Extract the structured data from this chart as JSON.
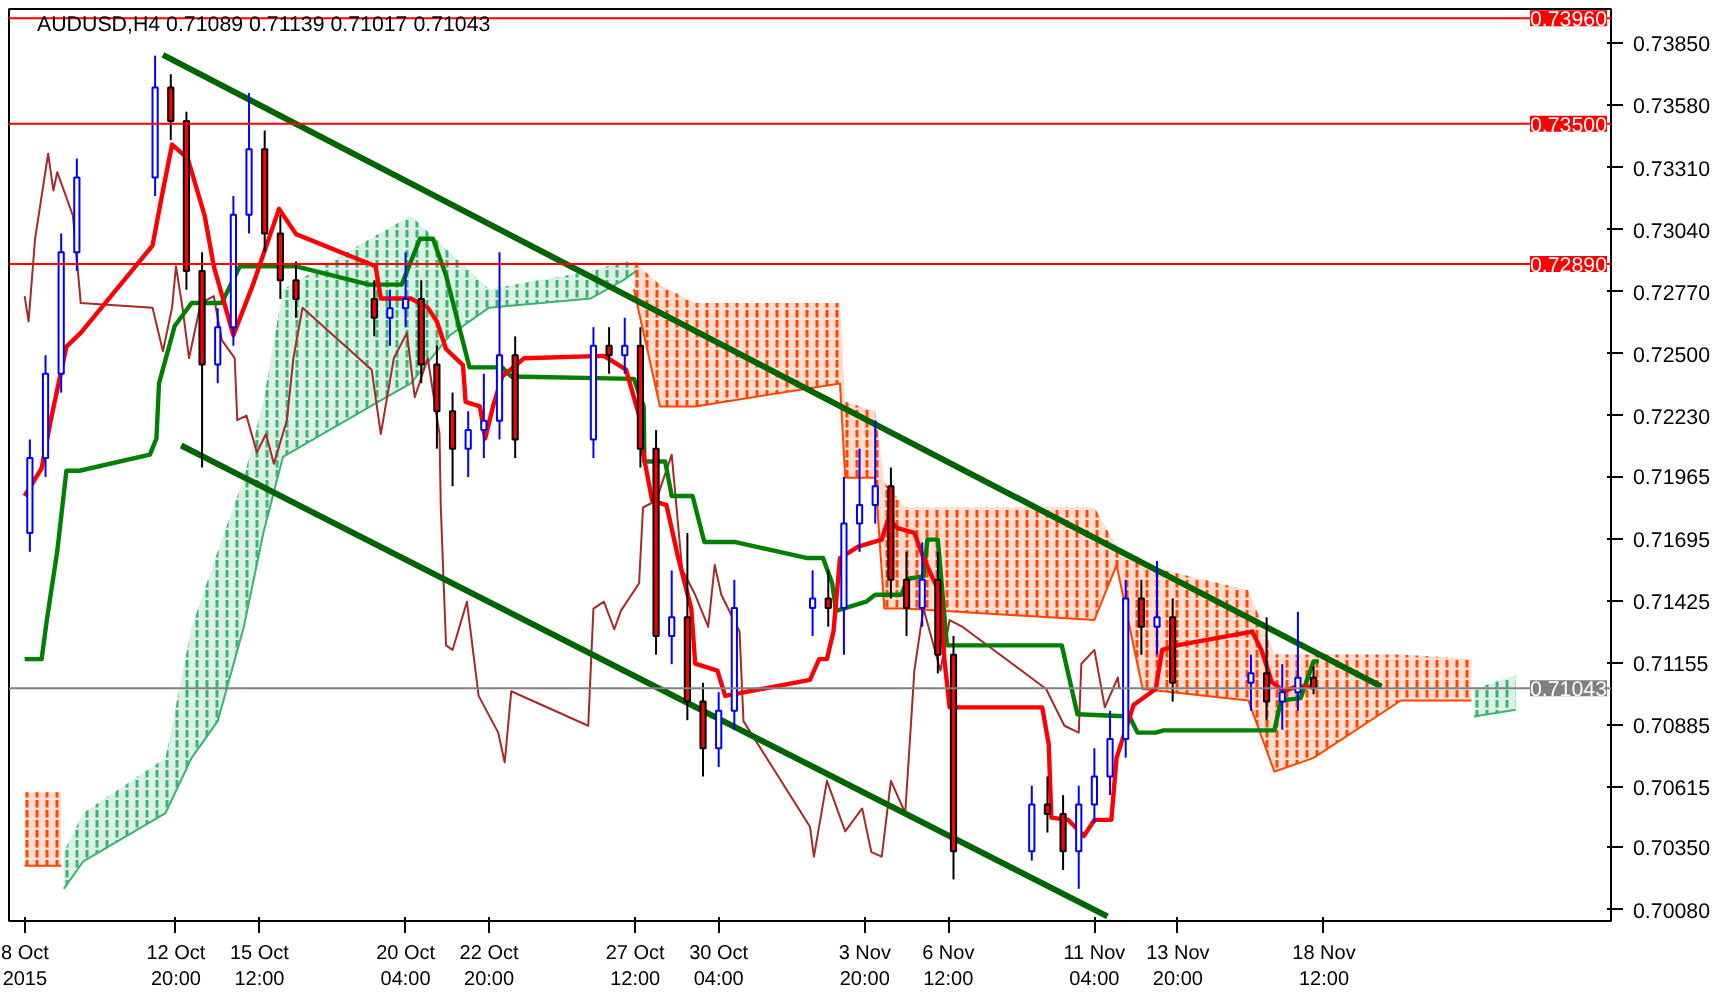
{
  "chart_data": {
    "type": "candlestick",
    "title": "AUDUSD,H4  0.71089 0.71139 0.71017 0.71043",
    "x": [
      "2015-10-08T04:00",
      "2015-10-08T16:00",
      "2015-10-09T04:00",
      "2015-10-09T16:00",
      "2015-10-12T04:00",
      "2015-10-12T16:00",
      "2015-10-13T04:00",
      "2015-10-13T16:00",
      "2015-10-14T04:00",
      "2015-10-14T16:00",
      "2015-10-15T04:00",
      "2015-10-15T16:00",
      "2015-10-16T04:00",
      "2015-10-16T16:00",
      "2015-10-19T04:00",
      "2015-10-19T16:00",
      "2015-10-20T04:00",
      "2015-10-20T16:00",
      "2015-10-21T04:00",
      "2015-10-21T16:00",
      "2015-10-22T04:00",
      "2015-10-22T16:00",
      "2015-10-23T04:00",
      "2015-10-23T16:00",
      "2015-10-26T04:00",
      "2015-10-26T16:00",
      "2015-10-27T04:00",
      "2015-10-27T16:00",
      "2015-10-28T04:00",
      "2015-10-28T16:00",
      "2015-10-29T04:00",
      "2015-10-29T16:00",
      "2015-10-30T04:00",
      "2015-10-30T16:00",
      "2015-11-02T04:00",
      "2015-11-02T16:00",
      "2015-11-03T04:00",
      "2015-11-03T16:00",
      "2015-11-04T04:00",
      "2015-11-04T16:00",
      "2015-11-05T04:00",
      "2015-11-05T16:00",
      "2015-11-06T04:00",
      "2015-11-06T16:00",
      "2015-11-09T04:00",
      "2015-11-09T16:00",
      "2015-11-10T04:00",
      "2015-11-10T16:00",
      "2015-11-11T04:00",
      "2015-11-11T16:00",
      "2015-11-12T04:00",
      "2015-11-12T16:00",
      "2015-11-13T04:00",
      "2015-11-13T16:00",
      "2015-11-16T04:00",
      "2015-11-16T16:00",
      "2015-11-17T04:00",
      "2015-11-17T16:00",
      "2015-11-18T04:00"
    ],
    "ohlc": [
      [
        0.71719,
        0.72126,
        0.71637,
        0.72045
      ],
      [
        0.72045,
        0.72493,
        0.71963,
        0.72412
      ],
      [
        0.72412,
        0.73023,
        0.7233,
        0.72941
      ],
      [
        0.72941,
        0.73349,
        0.7286,
        0.73267
      ],
      [
        0.73267,
        0.73797,
        0.73186,
        0.73658
      ],
      [
        0.73658,
        0.73716,
        0.7343,
        0.73512
      ],
      [
        0.73512,
        0.73553,
        0.72778,
        0.7286
      ],
      [
        0.7286,
        0.72941,
        0.72004,
        0.72452
      ],
      [
        0.72452,
        0.72697,
        0.72371,
        0.72615
      ],
      [
        0.72615,
        0.73186,
        0.72534,
        0.73104
      ],
      [
        0.73104,
        0.73634,
        0.73023,
        0.7339
      ],
      [
        0.7339,
        0.73471,
        0.72941,
        0.73023
      ],
      [
        0.73023,
        0.73104,
        0.72738,
        0.72819
      ],
      [
        0.72819,
        0.72901,
        0.72656,
        0.72738
      ],
      [
        0.72738,
        0.72819,
        0.72575,
        0.72656
      ],
      [
        0.72656,
        0.72778,
        0.72534,
        0.72697
      ],
      [
        0.72697,
        0.72941,
        0.72615,
        0.72738
      ],
      [
        0.72738,
        0.72819,
        0.72371,
        0.72452
      ],
      [
        0.72452,
        0.72534,
        0.72086,
        0.72249
      ],
      [
        0.72249,
        0.7233,
        0.71923,
        0.72086
      ],
      [
        0.72086,
        0.72249,
        0.71963,
        0.72167
      ],
      [
        0.72167,
        0.72412,
        0.72045,
        0.72208
      ],
      [
        0.72208,
        0.72941,
        0.72126,
        0.72493
      ],
      [
        0.72493,
        0.72575,
        0.72045,
        0.72126
      ],
      [
        0.72126,
        0.72615,
        0.72045,
        0.72534
      ],
      [
        0.72534,
        0.72615,
        0.72412,
        0.72493
      ],
      [
        0.72493,
        0.72656,
        0.72412,
        0.72534
      ],
      [
        0.72534,
        0.72615,
        0.72004,
        0.72086
      ],
      [
        0.72086,
        0.72167,
        0.71189,
        0.71271
      ],
      [
        0.71271,
        0.71556,
        0.71148,
        0.71352
      ],
      [
        0.71352,
        0.71719,
        0.70904,
        0.70985
      ],
      [
        0.70985,
        0.71067,
        0.70659,
        0.70782
      ],
      [
        0.70782,
        0.71026,
        0.707,
        0.70945
      ],
      [
        0.70945,
        0.71515,
        0.70863,
        0.71393
      ],
      [
        0.71393,
        0.71556,
        0.71271,
        0.71434
      ],
      [
        0.71434,
        0.71556,
        0.71311,
        0.71393
      ],
      [
        0.71393,
        0.71963,
        0.71189,
        0.7176
      ],
      [
        0.7176,
        0.72086,
        0.71637,
        0.71841
      ],
      [
        0.71841,
        0.72208,
        0.7176,
        0.71923
      ],
      [
        0.71923,
        0.72004,
        0.71434,
        0.71515
      ],
      [
        0.71515,
        0.71637,
        0.71271,
        0.71393
      ],
      [
        0.71393,
        0.71678,
        0.71311,
        0.71515
      ],
      [
        0.71515,
        0.71637,
        0.71108,
        0.71189
      ],
      [
        0.71189,
        0.71271,
        0.70211,
        0.70334
      ],
      [
        0.70334,
        0.70619,
        0.70293,
        0.70537
      ],
      [
        0.70537,
        0.70659,
        0.70415,
        0.70496
      ],
      [
        0.70496,
        0.70578,
        0.70252,
        0.70334
      ],
      [
        0.70334,
        0.70619,
        0.7017,
        0.70537
      ],
      [
        0.70537,
        0.70782,
        0.70456,
        0.70659
      ],
      [
        0.70659,
        0.70945,
        0.70578,
        0.70822
      ],
      [
        0.70822,
        0.71515,
        0.70741,
        0.71434
      ],
      [
        0.71434,
        0.71515,
        0.71189,
        0.71311
      ],
      [
        0.71311,
        0.71597,
        0.71189,
        0.71352
      ],
      [
        0.71352,
        0.71434,
        0.70985,
        0.71067
      ],
      [
        0.71067,
        0.71189,
        0.70945,
        0.71108
      ],
      [
        0.71108,
        0.71352,
        0.70904,
        0.70985
      ],
      [
        0.70985,
        0.71148,
        0.70863,
        0.71026
      ],
      [
        0.71026,
        0.71376,
        0.70945,
        0.71089
      ],
      [
        0.71089,
        0.71139,
        0.71017,
        0.71043
      ]
    ],
    "colors": [
      "#0000ff",
      "#0000ff",
      "#0000ff",
      "#0000ff",
      "#0000ff",
      "#ff0000",
      "#ff0000",
      "#ff0000",
      "#0000ff",
      "#0000ff",
      "#0000ff",
      "#ff0000",
      "#ff0000",
      "#ff0000",
      "#ff0000",
      "#0000ff",
      "#0000ff",
      "#ff0000",
      "#ff0000",
      "#ff0000",
      "#0000ff",
      "#0000ff",
      "#0000ff",
      "#ff0000",
      "#0000ff",
      "#ff0000",
      "#0000ff",
      "#ff0000",
      "#ff0000",
      "#0000ff",
      "#ff0000",
      "#ff0000",
      "#0000ff",
      "#0000ff",
      "#0000ff",
      "#ff0000",
      "#0000ff",
      "#0000ff",
      "#0000ff",
      "#ff0000",
      "#ff0000",
      "#0000ff",
      "#ff0000",
      "#ff0000",
      "#0000ff",
      "#ff0000",
      "#ff0000",
      "#0000ff",
      "#0000ff",
      "#0000ff",
      "#0000ff",
      "#ff0000",
      "#0000ff",
      "#ff0000",
      "#0000ff",
      "#ff0000",
      "#0000ff",
      "#0000ff",
      "#ff0000"
    ],
    "xlim": [
      "2015-10-07T12:00",
      "2015-11-27T16:00"
    ],
    "xticks": [
      {
        "value": "2015-10-08T00:00",
        "label": "8 Oct 2015"
      },
      {
        "value": "2015-10-12T20:00",
        "label": "12 Oct 20:00"
      },
      {
        "value": "2015-10-15T12:00",
        "label": "15 Oct 12:00"
      },
      {
        "value": "2015-10-20T04:00",
        "label": "20 Oct 04:00"
      },
      {
        "value": "2015-10-22T20:00",
        "label": "22 Oct 20:00"
      },
      {
        "value": "2015-10-27T12:00",
        "label": "27 Oct 12:00"
      },
      {
        "value": "2015-10-30T04:00",
        "label": "30 Oct 04:00"
      },
      {
        "value": "2015-11-03T20:00",
        "label": "3 Nov 20:00"
      },
      {
        "value": "2015-11-06T12:00",
        "label": "6 Nov 12:00"
      },
      {
        "value": "2015-11-11T04:00",
        "label": "11 Nov 04:00"
      },
      {
        "value": "2015-11-13T20:00",
        "label": "13 Nov 20:00"
      },
      {
        "value": "2015-11-18T12:00",
        "label": "18 Nov 12:00"
      }
    ],
    "ylim": [
      0.7003,
      0.74
    ],
    "yticks": [
      {
        "value": 0.7385,
        "label": "0.73850"
      },
      {
        "value": 0.7358,
        "label": "0.73580"
      },
      {
        "value": 0.7331,
        "label": "0.73310"
      },
      {
        "value": 0.7304,
        "label": "0.73040"
      },
      {
        "value": 0.7277,
        "label": "0.72770"
      },
      {
        "value": 0.725,
        "label": "0.72500"
      },
      {
        "value": 0.7223,
        "label": "0.72230"
      },
      {
        "value": 0.71965,
        "label": "0.71965"
      },
      {
        "value": 0.71695,
        "label": "0.71695"
      },
      {
        "value": 0.71425,
        "label": "0.71425"
      },
      {
        "value": 0.71155,
        "label": "0.71155"
      },
      {
        "value": 0.70885,
        "label": "0.70885"
      },
      {
        "value": 0.70615,
        "label": "0.70615"
      },
      {
        "value": 0.7035,
        "label": "0.70350"
      },
      {
        "value": 0.7008,
        "label": "0.70080"
      }
    ],
    "ref_lines": [
      {
        "axis": "y",
        "value": 0.7396,
        "label": "0.73960",
        "color": "#ff0000"
      },
      {
        "axis": "y",
        "value": 0.735,
        "label": "0.73500",
        "color": "#ff0000"
      },
      {
        "axis": "y",
        "value": 0.7289,
        "label": "0.72890",
        "color": "#ff0000"
      },
      {
        "axis": "y",
        "value": 0.71043,
        "label": "0.71043",
        "color": "#808080"
      }
    ],
    "series": [
      {
        "type": "line",
        "color": "#ff4500",
        "x": [
          "2015-10-08T00:00",
          "2015-10-09T04:00"
        ],
        "values": [
          0.7027,
          0.7027
        ],
        "lower": [
          0.7027,
          0.7027
        ],
        "upper": [
          0.7059,
          0.7059
        ]
      },
      {
        "type": "line",
        "color": "#3cb371",
        "x": [
          "2015-10-09T06:00",
          "2015-10-09T21:00",
          "2015-10-12T12:00",
          "2015-10-13T08:00",
          "2015-10-14T04:00",
          "2015-10-15T00:00",
          "2015-10-15T15:00",
          "2015-10-16T06:00",
          "2015-10-19T07:00",
          "2015-10-20T08:00",
          "2015-10-21T14:00",
          "2015-10-22T20:00",
          "2015-10-26T02:00",
          "2015-10-27T03:00",
          "2015-10-27T13:00"
        ],
        "upper": [
          0.7033,
          0.705,
          0.7074,
          0.7131,
          0.7164,
          0.7196,
          0.7229,
          0.7278,
          0.7302,
          0.731,
          0.7294,
          0.7278,
          0.7286,
          0.729,
          0.729
        ],
        "values": [
          0.7017,
          0.7029,
          0.705,
          0.7074,
          0.709,
          0.7131,
          0.7172,
          0.7205,
          0.7229,
          0.7237,
          0.7258,
          0.727,
          0.7274,
          0.7282,
          0.7286
        ],
        "lower": [
          0.7017,
          0.7029,
          0.705,
          0.7074,
          0.709,
          0.7131,
          0.7172,
          0.7205,
          0.7229,
          0.7237,
          0.7258,
          0.727,
          0.7274,
          0.7282,
          0.7286
        ]
      },
      {
        "type": "line",
        "color": "#ff4500",
        "x": [
          "2015-10-27T11:00",
          "2015-10-28T07:00",
          "2015-10-29T10:00",
          "2015-11-03T01:00",
          "2015-11-03T05:00",
          "2015-11-04T04:00",
          "2015-11-04T11:00",
          "2015-11-05T03:00",
          "2015-11-11T04:00",
          "2015-11-11T21:00",
          "2015-11-12T17:00",
          "2015-11-16T02:00",
          "2015-11-16T22:00",
          "2015-11-18T04:00",
          "2015-11-20T23:00",
          "2015-11-23T05:00"
        ],
        "upper": [
          0.729,
          0.728,
          0.7272,
          0.7272,
          0.7229,
          0.7225,
          0.7194,
          0.7183,
          0.7183,
          0.7166,
          0.7158,
          0.7147,
          0.7119,
          0.7119,
          0.7119,
          0.7117
        ],
        "values": [
          0.7278,
          0.7227,
          0.7227,
          0.7237,
          0.7196,
          0.7196,
          0.7139,
          0.7139,
          0.7134,
          0.7158,
          0.7104,
          0.7099,
          0.7068,
          0.7074,
          0.7099,
          0.7099
        ],
        "lower": [
          0.7278,
          0.7227,
          0.7227,
          0.7237,
          0.7196,
          0.7196,
          0.7139,
          0.7139,
          0.7134,
          0.7158,
          0.7104,
          0.7099,
          0.7068,
          0.7074,
          0.7099,
          0.7099
        ]
      },
      {
        "type": "line",
        "color": "#3cb371",
        "x": [
          "2015-11-23T07:00",
          "2015-11-24T15:00"
        ],
        "values": [
          0.7092,
          0.7095
        ],
        "lower": [
          0.7092,
          0.7095
        ],
        "upper": [
          0.7104,
          0.711
        ]
      },
      {
        "type": "line",
        "color": "#a52a2a",
        "x": [
          "2015-10-08T00:00",
          "2015-10-08T03:00",
          "2015-10-08T08:00",
          "2015-10-08T18:00",
          "2015-10-08T22:00",
          "2015-10-09T01:00",
          "2015-10-09T13:00",
          "2015-10-09T19:00",
          "2015-10-12T02:00",
          "2015-10-12T10:00",
          "2015-10-12T17:00",
          "2015-10-12T20:00",
          "2015-10-13T01:00",
          "2015-10-13T06:00",
          "2015-10-13T15:00",
          "2015-10-14T01:00",
          "2015-10-14T07:00",
          "2015-10-14T17:00",
          "2015-10-14T19:00",
          "2015-10-15T02:00",
          "2015-10-15T10:00",
          "2015-10-15T17:00",
          "2015-10-15T23:00",
          "2015-10-16T09:00",
          "2015-10-16T14:00",
          "2015-10-16T21:00",
          "2015-10-19T02:00",
          "2015-10-19T09:00",
          "2015-10-19T19:00",
          "2015-10-20T05:00",
          "2015-10-20T11:00",
          "2015-10-20T21:00",
          "2015-10-21T06:00",
          "2015-10-21T07:00",
          "2015-10-21T11:00",
          "2015-10-21T16:00",
          "2015-10-22T03:00",
          "2015-10-22T12:00",
          "2015-10-23T03:00",
          "2015-10-23T08:00",
          "2015-10-23T13:00",
          "2015-10-26T00:00",
          "2015-10-26T04:00",
          "2015-10-26T12:00",
          "2015-10-26T20:00",
          "2015-10-27T01:00",
          "2015-10-27T15:00",
          "2015-10-27T18:00",
          "2015-10-28T04:00",
          "2015-10-28T16:00",
          "2015-10-29T00:00",
          "2015-10-29T10:00",
          "2015-10-29T20:00",
          "2015-10-30T01:00",
          "2015-10-30T06:00",
          "2015-10-30T20:00",
          "2015-10-30T23:00",
          "2015-11-02T02:00",
          "2015-11-02T05:00",
          "2015-11-02T15:00",
          "2015-11-03T05:00",
          "2015-11-03T18:00",
          "2015-11-04T01:00",
          "2015-11-04T09:00",
          "2015-11-04T16:00",
          "2015-11-05T03:00",
          "2015-11-05T10:00",
          "2015-11-05T17:00",
          "2015-11-06T06:00",
          "2015-11-06T13:00",
          "2015-11-06T23:00",
          "2015-11-09T15:00",
          "2015-11-10T05:00",
          "2015-11-10T16:00",
          "2015-11-10T18:00",
          "2015-11-11T04:00",
          "2015-11-11T12:00",
          "2015-11-11T22:00",
          "2015-11-11T23:00"
        ],
        "values": [
          0.7275,
          0.7264,
          0.73,
          0.7337,
          0.7321,
          0.7329,
          0.731,
          0.7272,
          0.727,
          0.7251,
          0.727,
          0.7288,
          0.727,
          0.7248,
          0.7272,
          0.7275,
          0.7256,
          0.7248,
          0.7221,
          0.7223,
          0.7207,
          0.7215,
          0.7202,
          0.7221,
          0.7248,
          0.727,
          0.7243,
          0.7215,
          0.7248,
          0.7259,
          0.7231,
          0.7248,
          0.7215,
          0.7183,
          0.7123,
          0.7121,
          0.7142,
          0.7101,
          0.7085,
          0.7072,
          0.7103,
          0.7088,
          0.7139,
          0.7142,
          0.713,
          0.7138,
          0.715,
          0.7183,
          0.7186,
          0.7206,
          0.7156,
          0.7145,
          0.7131,
          0.7158,
          0.7145,
          0.7129,
          0.709,
          0.7044,
          0.7031,
          0.7064,
          0.7042,
          0.7052,
          0.7033,
          0.7031,
          0.7064,
          0.705,
          0.7112,
          0.7139,
          0.7112,
          0.7134,
          0.7131,
          0.7104,
          0.7088,
          0.7085,
          0.7115,
          0.7121,
          0.7096,
          0.7109,
          0.7104
        ]
      },
      {
        "type": "line",
        "color": "#008000",
        "x": [
          "2015-10-08T00:00",
          "2015-10-08T13:00",
          "2015-10-08T17:00",
          "2015-10-09T01:00",
          "2015-10-09T08:00",
          "2015-10-09T18:00",
          "2015-10-12T00:00",
          "2015-10-12T05:00",
          "2015-10-12T07:00",
          "2015-10-12T19:00",
          "2015-10-13T08:00",
          "2015-10-14T07:00",
          "2015-10-14T21:00",
          "2015-10-16T16:00",
          "2015-10-19T00:00",
          "2015-10-20T01:00",
          "2015-10-20T15:00",
          "2015-10-21T01:00",
          "2015-10-21T11:00",
          "2015-10-22T05:00",
          "2015-10-23T06:00",
          "2015-10-23T13:00",
          "2015-10-27T11:00",
          "2015-10-27T18:30",
          "2015-10-27T19:00",
          "2015-10-28T11:00",
          "2015-10-28T16:00",
          "2015-10-29T08:00",
          "2015-10-29T17:00",
          "2015-10-30T16:00",
          "2015-11-02T00:00",
          "2015-11-02T12:00",
          "2015-11-02T19:00",
          "2015-11-02T22:00",
          "2015-11-03T21:00",
          "2015-11-04T04:00",
          "2015-11-05T00:00",
          "2015-11-05T05:00",
          "2015-11-05T17:00",
          "2015-11-05T20:00",
          "2015-11-06T04:00",
          "2015-11-06T11:00",
          "2015-11-10T03:00",
          "2015-11-10T15:00",
          "2015-11-12T07:00",
          "2015-11-12T13:00",
          "2015-11-13T03:00",
          "2015-11-13T09:00",
          "2015-11-16T22:00",
          "2015-11-17T03:00",
          "2015-11-17T18:00",
          "2015-11-18T04:00",
          "2015-11-18T08:00"
        ],
        "values": [
          0.7117,
          0.7117,
          0.7134,
          0.7164,
          0.7199,
          0.7199,
          0.7206,
          0.7213,
          0.7237,
          0.7262,
          0.7272,
          0.7272,
          0.7288,
          0.7288,
          0.728,
          0.728,
          0.73,
          0.73,
          0.7284,
          0.7244,
          0.7244,
          0.724,
          0.7239,
          0.7227,
          0.7203,
          0.7203,
          0.7188,
          0.7188,
          0.7168,
          0.7168,
          0.7161,
          0.7161,
          0.715,
          0.7138,
          0.7142,
          0.7145,
          0.7145,
          0.7152,
          0.7153,
          0.7169,
          0.7169,
          0.7123,
          0.7123,
          0.7093,
          0.7092,
          0.7085,
          0.7085,
          0.7086,
          0.7086,
          0.7099,
          0.71,
          0.7116,
          0.7116
        ]
      },
      {
        "type": "line",
        "color": "#ff0000",
        "x": [
          "2015-10-08T00:00",
          "2015-10-08T13:00",
          "2015-10-08T20:00",
          "2015-10-09T08:00",
          "2015-10-09T19:00",
          "2015-10-12T02:00",
          "2015-10-12T10:00",
          "2015-10-12T17:00",
          "2015-10-13T05:00",
          "2015-10-13T18:00",
          "2015-10-14T01:00",
          "2015-10-14T16:00",
          "2015-10-15T07:00",
          "2015-10-16T03:00",
          "2015-10-16T16:00",
          "2015-10-19T05:00",
          "2015-10-19T09:00",
          "2015-10-20T08:00",
          "2015-10-20T21:00",
          "2015-10-21T04:00",
          "2015-10-21T11:00",
          "2015-10-22T00:00",
          "2015-10-22T02:00",
          "2015-10-22T13:00",
          "2015-10-22T17:00",
          "2015-10-22T23:00",
          "2015-10-23T06:00",
          "2015-10-23T23:00",
          "2015-10-26T12:00",
          "2015-10-27T05:00",
          "2015-10-27T15:00",
          "2015-10-27T18:00",
          "2015-10-28T01:00",
          "2015-10-28T12:00",
          "2015-10-28T21:00",
          "2015-10-29T07:00",
          "2015-10-29T10:00",
          "2015-10-30T03:00",
          "2015-10-30T09:00",
          "2015-11-02T02:00",
          "2015-11-02T09:00",
          "2015-11-02T15:00",
          "2015-11-02T20:00",
          "2015-11-03T01:00",
          "2015-11-03T15:00",
          "2015-11-04T09:00",
          "2015-11-04T14:00",
          "2015-11-04T21:00",
          "2015-11-05T10:00",
          "2015-11-05T17:00",
          "2015-11-06T06:00",
          "2015-11-06T09:00",
          "2015-11-06T13:00",
          "2015-11-09T12:00",
          "2015-11-09T17:00",
          "2015-11-09T19:00",
          "2015-11-10T08:00",
          "2015-11-10T20:00",
          "2015-11-11T04:00",
          "2015-11-11T17:00",
          "2015-11-11T21:00",
          "2015-11-12T10:00",
          "2015-11-13T03:00",
          "2015-11-13T08:00",
          "2015-11-13T19:00",
          "2015-11-16T05:00",
          "2015-11-16T12:00",
          "2015-11-16T20:00",
          "2015-11-17T05:00",
          "2015-11-17T15:00",
          "2015-11-18T07:00"
        ],
        "values": [
          0.7188,
          0.72,
          0.7221,
          0.7253,
          0.7259,
          0.7297,
          0.7321,
          0.7341,
          0.7335,
          0.731,
          0.7288,
          0.7258,
          0.728,
          0.7313,
          0.7302,
          0.7288,
          0.7274,
          0.7274,
          0.727,
          0.7264,
          0.7252,
          0.7245,
          0.7229,
          0.7227,
          0.7213,
          0.7227,
          0.724,
          0.7248,
          0.7249,
          0.7243,
          0.7223,
          0.7207,
          0.7186,
          0.7184,
          0.7161,
          0.7139,
          0.7115,
          0.7112,
          0.7101,
          0.7108,
          0.7117,
          0.7117,
          0.7129,
          0.7161,
          0.7166,
          0.7169,
          0.7178,
          0.7174,
          0.7172,
          0.7161,
          0.7145,
          0.7117,
          0.7096,
          0.7096,
          0.708,
          0.7048,
          0.7047,
          0.704,
          0.7047,
          0.7047,
          0.7074,
          0.7097,
          0.7104,
          0.7121,
          0.7123,
          0.7129,
          0.7121,
          0.7107,
          0.7103,
          0.7105,
          0.7105
        ]
      },
      {
        "type": "line",
        "color": "#006400",
        "x": [
          "2015-10-12T10:00",
          "2015-11-20T08:00"
        ],
        "values": [
          0.738,
          0.7105
        ]
      },
      {
        "type": "line",
        "color": "#006400",
        "x": [
          "2015-10-13T00:00",
          "2015-11-11T14:00"
        ],
        "values": [
          0.721,
          0.7005
        ]
      }
    ]
  }
}
